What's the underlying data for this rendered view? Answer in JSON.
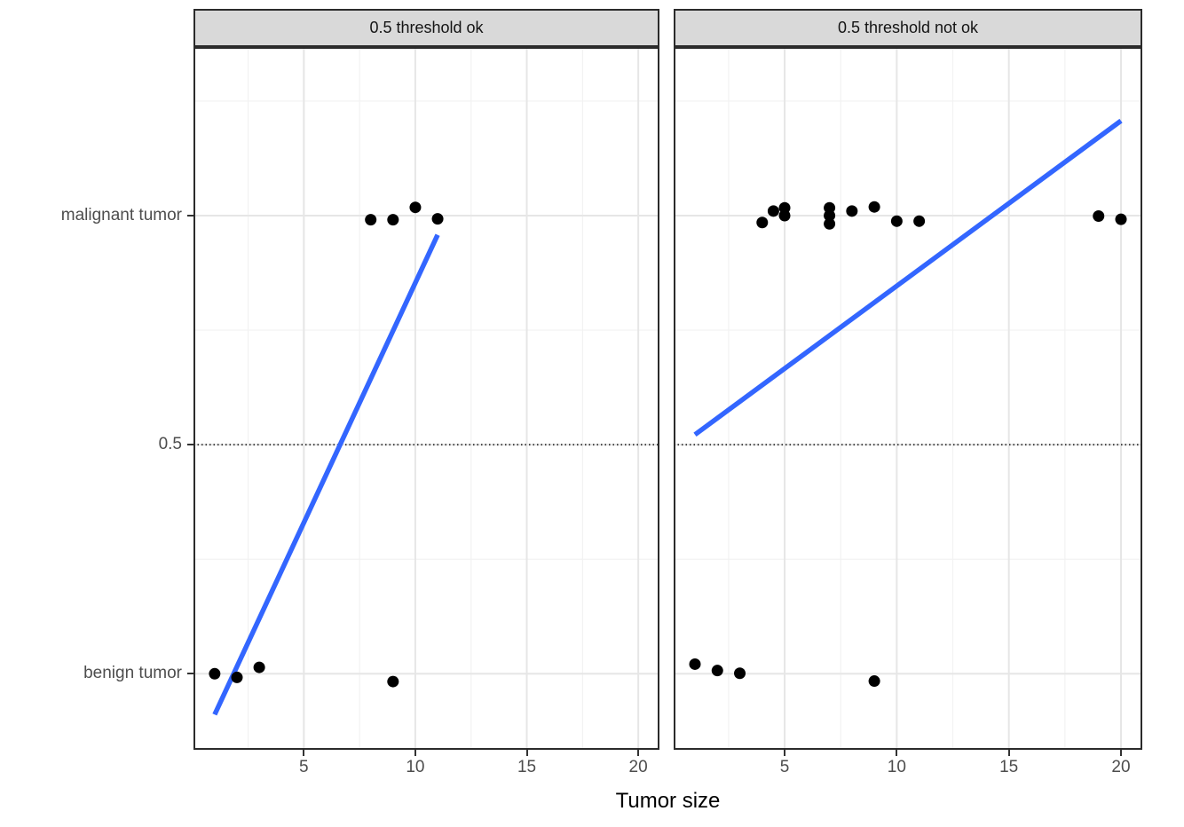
{
  "chart_data": {
    "type": "scatter",
    "xlabel": "Tumor size",
    "xlim": [
      0.05,
      20.95
    ],
    "ylim": [
      -0.166,
      1.368
    ],
    "x_ticks": [
      5,
      10,
      15,
      20
    ],
    "x_minor_ticks": [
      2.5,
      7.5,
      12.5,
      17.5
    ],
    "y_ticks": [
      {
        "value": 1,
        "label": "malignant tumor"
      },
      {
        "value": 0.5,
        "label": "0.5"
      },
      {
        "value": 0,
        "label": "benign tumor"
      }
    ],
    "y_minor_ticks": [
      0.25,
      0.75,
      1.25
    ],
    "threshold_line": {
      "value": 0.5,
      "style": "dotted"
    },
    "grid": true,
    "legend": "none",
    "colors": {
      "point": "#000000",
      "regression_line": "#3366FF",
      "grid_major": "#E6E6E6",
      "grid_minor": "#F2F2F2",
      "panel_border": "#2B2B2B",
      "strip_bg": "#D9D9D9",
      "axis_text": "#4D4D4D",
      "threshold": "#404040"
    },
    "facets": [
      {
        "title": "0.5 threshold ok",
        "series": [
          {
            "name": "benign tumor",
            "points": [
              [
                1,
                0.0
              ],
              [
                2,
                -0.008
              ],
              [
                3,
                0.014
              ],
              [
                9,
                -0.017
              ]
            ]
          },
          {
            "name": "malignant tumor",
            "points": [
              [
                8,
                0.991
              ],
              [
                9,
                0.991
              ],
              [
                10,
                1.018
              ],
              [
                11,
                0.993
              ]
            ]
          }
        ],
        "regression_line": {
          "x1": 1,
          "y1": -0.089,
          "x2": 11,
          "y2": 0.958
        }
      },
      {
        "title": "0.5 threshold not ok",
        "series": [
          {
            "name": "benign tumor",
            "points": [
              [
                1,
                0.021
              ],
              [
                2,
                0.007
              ],
              [
                3,
                0.001
              ],
              [
                9,
                -0.016
              ]
            ]
          },
          {
            "name": "malignant tumor",
            "points": [
              [
                4,
                0.985
              ],
              [
                4.5,
                1.01
              ],
              [
                5,
                1.017
              ],
              [
                5,
                1.0
              ],
              [
                7,
                1.017
              ],
              [
                7,
                1.0
              ],
              [
                7,
                0.982
              ],
              [
                8,
                1.01
              ],
              [
                9,
                1.019
              ],
              [
                10,
                0.988
              ],
              [
                11,
                0.988
              ],
              [
                19,
                0.999
              ],
              [
                20,
                0.992
              ]
            ]
          }
        ],
        "regression_line": {
          "x1": 1,
          "y1": 0.522,
          "x2": 20,
          "y2": 1.207
        }
      }
    ]
  }
}
